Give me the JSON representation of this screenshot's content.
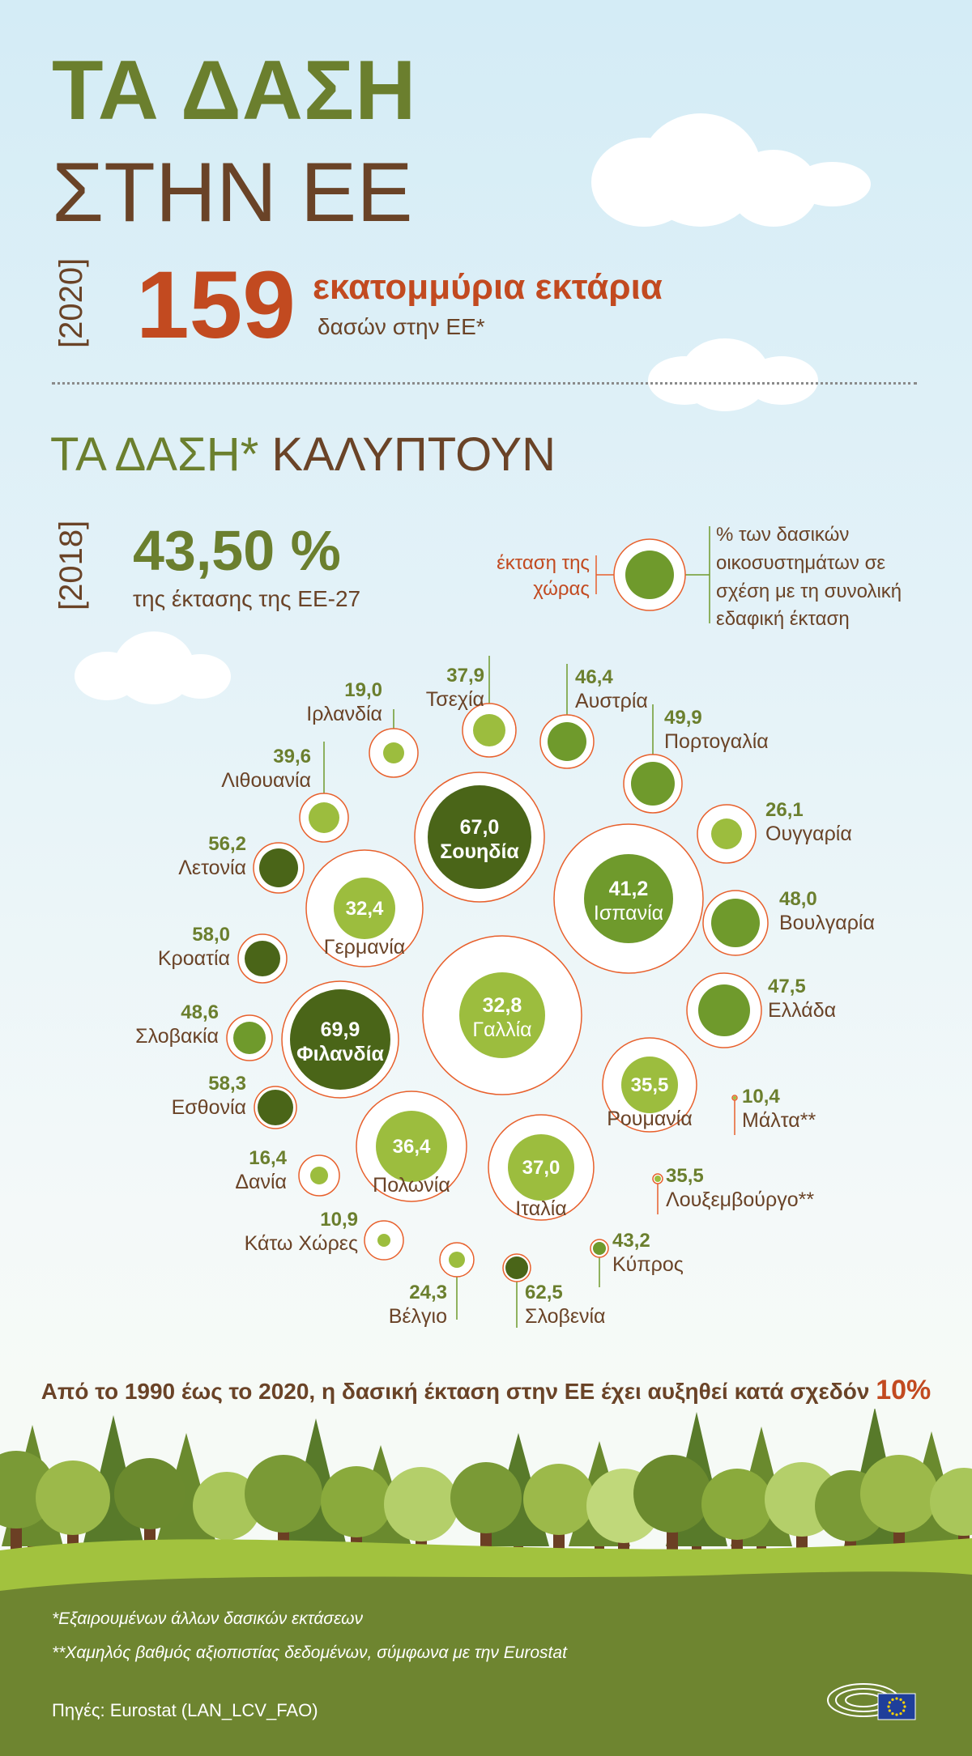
{
  "header": {
    "title_line1": "ΤΑ ΔΑΣΗ",
    "title_line2": "ΣΤΗΝ ΕΕ"
  },
  "total": {
    "year": "[2020]",
    "value": "159",
    "unit": "εκατομμύρια εκτάρια",
    "sub": "δασών στην ΕΕ*"
  },
  "coverage": {
    "title_green": "ΤΑ ΔΑΣΗ*",
    "title_brown": "ΚΑΛΥΠΤΟΥΝ",
    "year": "[2018]",
    "value": "43,50 %",
    "sub": "της έκτασης της ΕΕ-27"
  },
  "legend": {
    "outer_label": "έκταση της χώρας",
    "inner_label": "% των δασικών οικοσυστημάτων σε σχέση με τη συνολική εδαφική έκταση"
  },
  "chart_data": {
    "type": "bubble",
    "series": [
      {
        "country": "Ιρλανδία",
        "value": 19.0,
        "label": "19,0"
      },
      {
        "country": "Τσεχία",
        "value": 37.9,
        "label": "37,9"
      },
      {
        "country": "Αυστρία",
        "value": 46.4,
        "label": "46,4"
      },
      {
        "country": "Πορτογαλία",
        "value": 49.9,
        "label": "49,9"
      },
      {
        "country": "Λιθουανία",
        "value": 39.6,
        "label": "39,6"
      },
      {
        "country": "Σουηδία",
        "value": 67.0,
        "label": "67,0"
      },
      {
        "country": "Ουγγαρία",
        "value": 26.1,
        "label": "26,1"
      },
      {
        "country": "Λετονία",
        "value": 56.2,
        "label": "56,2"
      },
      {
        "country": "Γερμανία",
        "value": 32.4,
        "label": "32,4"
      },
      {
        "country": "Ισπανία",
        "value": 41.2,
        "label": "41,2"
      },
      {
        "country": "Βουλγαρία",
        "value": 48.0,
        "label": "48,0"
      },
      {
        "country": "Κροατία",
        "value": 58.0,
        "label": "58,0"
      },
      {
        "country": "Γαλλία",
        "value": 32.8,
        "label": "32,8"
      },
      {
        "country": "Ελλάδα",
        "value": 47.5,
        "label": "47,5"
      },
      {
        "country": "Σλοβακία",
        "value": 48.6,
        "label": "48,6"
      },
      {
        "country": "Φιλανδία",
        "value": 69.9,
        "label": "69,9"
      },
      {
        "country": "Ρουμανία",
        "value": 35.5,
        "label": "35,5"
      },
      {
        "country": "Μάλτα**",
        "value": 10.4,
        "label": "10,4"
      },
      {
        "country": "Εσθονία",
        "value": 58.3,
        "label": "58,3"
      },
      {
        "country": "Πολωνία",
        "value": 36.4,
        "label": "36,4"
      },
      {
        "country": "Ιταλία",
        "value": 37.0,
        "label": "37,0"
      },
      {
        "country": "Λουξεμβούργο**",
        "value": 35.5,
        "label": "35,5"
      },
      {
        "country": "Δανία",
        "value": 16.4,
        "label": "16,4"
      },
      {
        "country": "Κάτω Χώρες",
        "value": 10.9,
        "label": "10,9"
      },
      {
        "country": "Κύπρος",
        "value": 43.2,
        "label": "43,2"
      },
      {
        "country": "Βέλγιο",
        "value": 24.3,
        "label": "24,3"
      },
      {
        "country": "Σλοβενία",
        "value": 62.5,
        "label": "62,5"
      }
    ],
    "colors": {
      "outline": "#e8602c",
      "light": "#9cbd3e",
      "mid": "#6f9a2c",
      "dark": "#4a6518"
    }
  },
  "bottom": {
    "message": "Από το 1990 έως το 2020, η δασική έκταση στην ΕΕ έχει αυξηθεί κατά σχεδόν",
    "highlight": "10%"
  },
  "footnotes": {
    "note1": "*Εξαιρουμένων άλλων δασικών εκτάσεων",
    "note2": "**Χαμηλός βαθμός αξιοπιστίας δεδομένων, σύμφωνα με την Eurostat",
    "source": "Πηγές: Eurostat (LAN_LCV_FAO)"
  }
}
